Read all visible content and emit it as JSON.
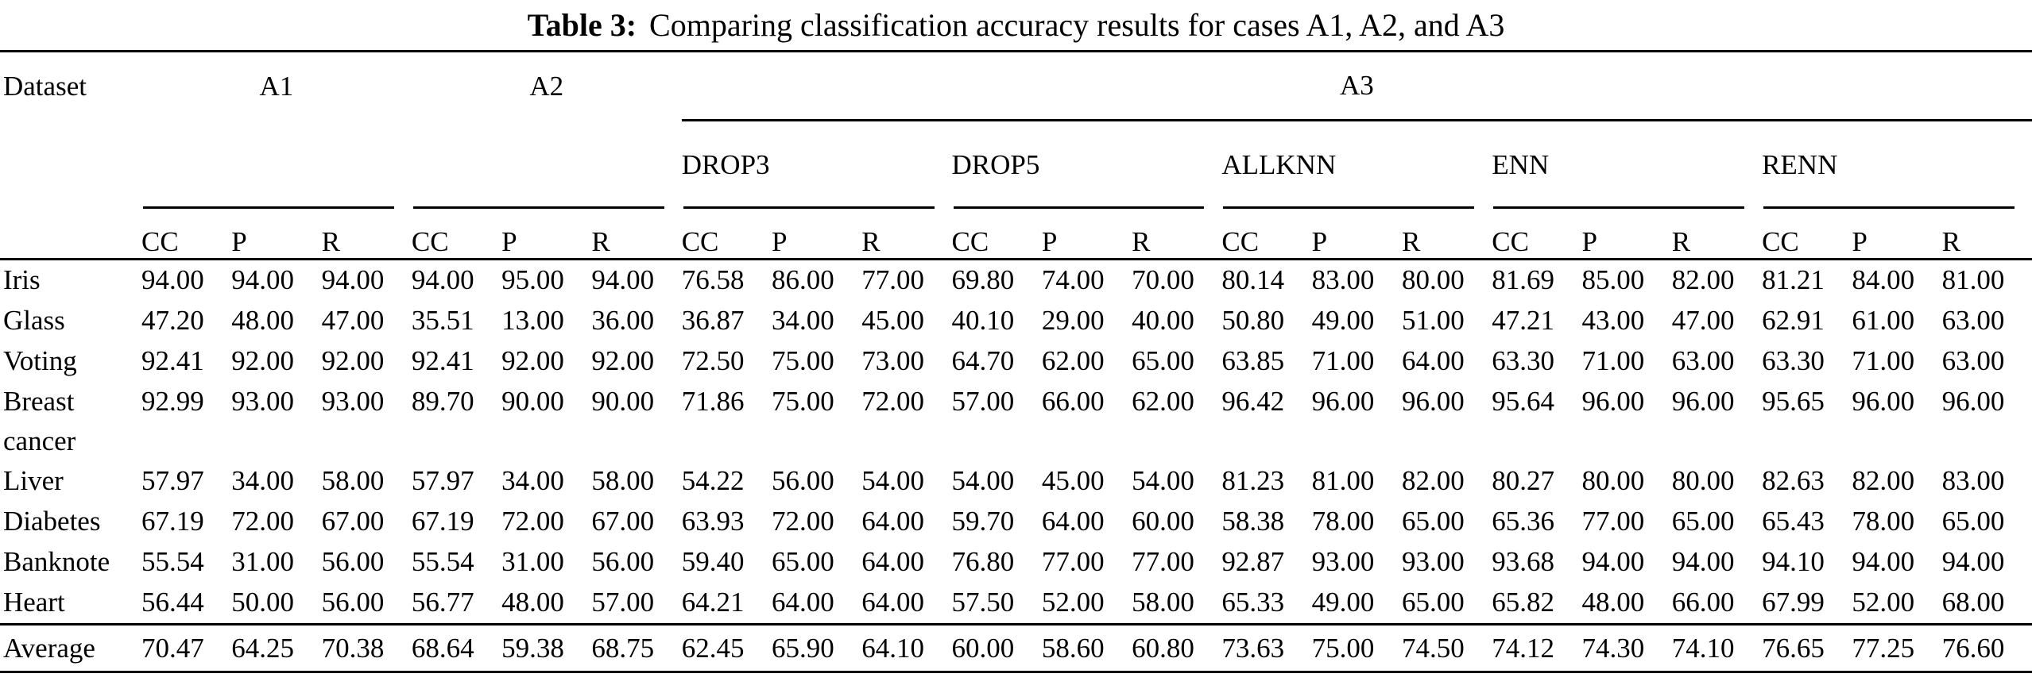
{
  "colors": {
    "text": "#000000",
    "background": "#ffffff",
    "rule": "#000000"
  },
  "title": {
    "prefix": "Table 3:",
    "text": "Comparing classification accuracy results for cases A1, A2, and A3"
  },
  "table": {
    "dataset_header": "Dataset",
    "top_groups": [
      {
        "label": "A1",
        "span": 3
      },
      {
        "label": "A2",
        "span": 3
      },
      {
        "label": "A3",
        "span": 15
      }
    ],
    "sub_groups": [
      "DROP3",
      "DROP5",
      "ALLKNN",
      "ENN",
      "RENN"
    ],
    "metrics": [
      "CC",
      "P",
      "R"
    ],
    "rows": [
      {
        "dataset": "Iris",
        "values": [
          "94.00",
          "94.00",
          "94.00",
          "94.00",
          "95.00",
          "94.00",
          "76.58",
          "86.00",
          "77.00",
          "69.80",
          "74.00",
          "70.00",
          "80.14",
          "83.00",
          "80.00",
          "81.69",
          "85.00",
          "82.00",
          "81.21",
          "84.00",
          "81.00"
        ]
      },
      {
        "dataset": "Glass",
        "values": [
          "47.20",
          "48.00",
          "47.00",
          "35.51",
          "13.00",
          "36.00",
          "36.87",
          "34.00",
          "45.00",
          "40.10",
          "29.00",
          "40.00",
          "50.80",
          "49.00",
          "51.00",
          "47.21",
          "43.00",
          "47.00",
          "62.91",
          "61.00",
          "63.00"
        ]
      },
      {
        "dataset": "Voting",
        "values": [
          "92.41",
          "92.00",
          "92.00",
          "92.41",
          "92.00",
          "92.00",
          "72.50",
          "75.00",
          "73.00",
          "64.70",
          "62.00",
          "65.00",
          "63.85",
          "71.00",
          "64.00",
          "63.30",
          "71.00",
          "63.00",
          "63.30",
          "71.00",
          "63.00"
        ]
      },
      {
        "dataset": "Breast cancer",
        "values": [
          "92.99",
          "93.00",
          "93.00",
          "89.70",
          "90.00",
          "90.00",
          "71.86",
          "75.00",
          "72.00",
          "57.00",
          "66.00",
          "62.00",
          "96.42",
          "96.00",
          "96.00",
          "95.64",
          "96.00",
          "96.00",
          "95.65",
          "96.00",
          "96.00"
        ]
      },
      {
        "dataset": "Liver",
        "values": [
          "57.97",
          "34.00",
          "58.00",
          "57.97",
          "34.00",
          "58.00",
          "54.22",
          "56.00",
          "54.00",
          "54.00",
          "45.00",
          "54.00",
          "81.23",
          "81.00",
          "82.00",
          "80.27",
          "80.00",
          "80.00",
          "82.63",
          "82.00",
          "83.00"
        ]
      },
      {
        "dataset": "Diabetes",
        "values": [
          "67.19",
          "72.00",
          "67.00",
          "67.19",
          "72.00",
          "67.00",
          "63.93",
          "72.00",
          "64.00",
          "59.70",
          "64.00",
          "60.00",
          "58.38",
          "78.00",
          "65.00",
          "65.36",
          "77.00",
          "65.00",
          "65.43",
          "78.00",
          "65.00"
        ]
      },
      {
        "dataset": "Banknote",
        "values": [
          "55.54",
          "31.00",
          "56.00",
          "55.54",
          "31.00",
          "56.00",
          "59.40",
          "65.00",
          "64.00",
          "76.80",
          "77.00",
          "77.00",
          "92.87",
          "93.00",
          "93.00",
          "93.68",
          "94.00",
          "94.00",
          "94.10",
          "94.00",
          "94.00"
        ]
      },
      {
        "dataset": "Heart",
        "values": [
          "56.44",
          "50.00",
          "56.00",
          "56.77",
          "48.00",
          "57.00",
          "64.21",
          "64.00",
          "64.00",
          "57.50",
          "52.00",
          "58.00",
          "65.33",
          "49.00",
          "65.00",
          "65.82",
          "48.00",
          "66.00",
          "67.99",
          "52.00",
          "68.00"
        ]
      }
    ],
    "average": {
      "dataset": "Average",
      "values": [
        "70.47",
        "64.25",
        "70.38",
        "68.64",
        "59.38",
        "68.75",
        "62.45",
        "65.90",
        "64.10",
        "60.00",
        "58.60",
        "60.80",
        "73.63",
        "75.00",
        "74.50",
        "74.12",
        "74.30",
        "74.10",
        "76.65",
        "77.25",
        "76.60"
      ]
    }
  }
}
